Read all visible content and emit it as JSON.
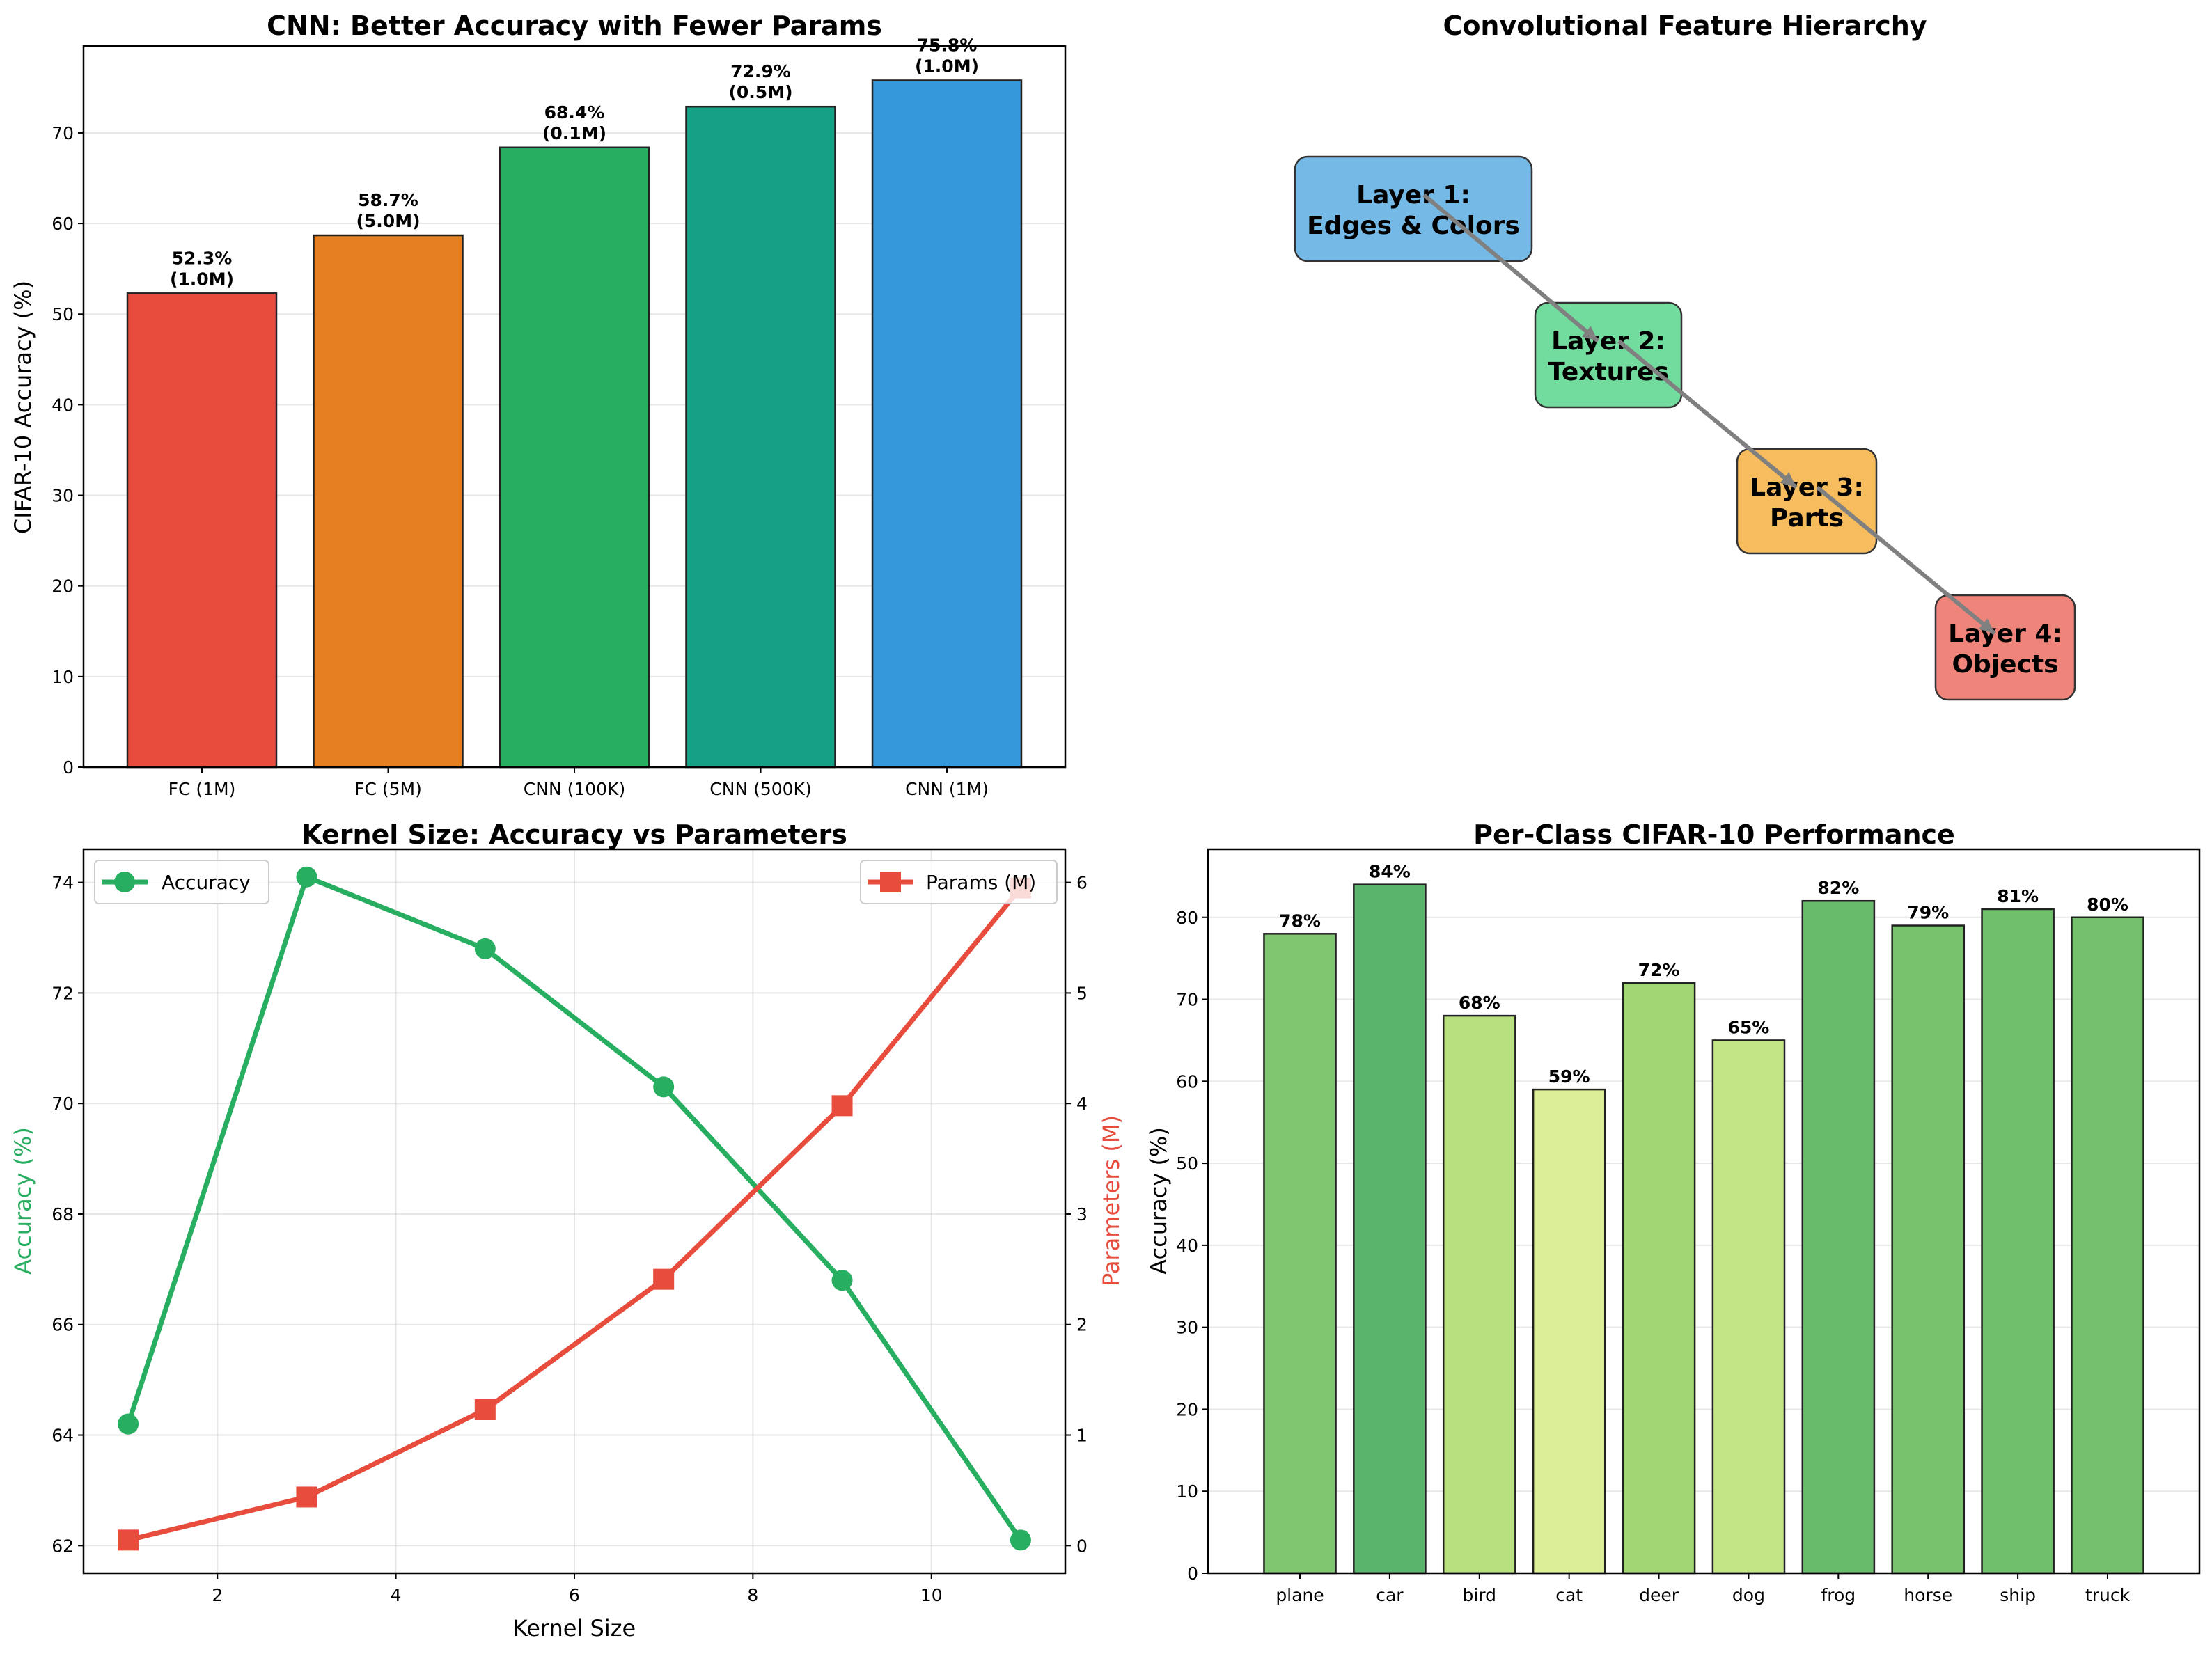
{
  "chart_data": [
    {
      "type": "bar",
      "title": "CNN: Better Accuracy with Fewer Params",
      "xlabel": "",
      "ylabel": "CIFAR-10 Accuracy (%)",
      "ylim": [
        0,
        79.6
      ],
      "yticks": [
        0,
        10,
        20,
        30,
        40,
        50,
        60,
        70
      ],
      "grid": "y",
      "categories": [
        "FC (1M)",
        "FC (5M)",
        "CNN (100K)",
        "CNN (500K)",
        "CNN (1M)"
      ],
      "values": [
        52.3,
        58.7,
        68.4,
        72.9,
        75.8
      ],
      "params_millions": [
        1.0,
        5.0,
        0.1,
        0.5,
        1.0
      ],
      "data_labels": [
        "52.3%\n(1.0M)",
        "58.7%\n(5.0M)",
        "68.4%\n(0.1M)",
        "72.9%\n(0.5M)",
        "75.8%\n(1.0M)"
      ],
      "colors": [
        "#e74c3c",
        "#e67e22",
        "#27ae60",
        "#16a085",
        "#3498db"
      ]
    },
    {
      "type": "diagram",
      "title": "Convolutional Feature Hierarchy",
      "nodes": [
        {
          "label": "Layer 1:\nEdges & Colors",
          "color": "#5dade2"
        },
        {
          "label": "Layer 2:\nTextures",
          "color": "#58d68d"
        },
        {
          "label": "Layer 3:\nParts",
          "color": "#f5b041"
        },
        {
          "label": "Layer 4:\nObjects",
          "color": "#ec7063"
        }
      ],
      "edges": [
        [
          0,
          1
        ],
        [
          1,
          2
        ],
        [
          2,
          3
        ]
      ],
      "edge_color": "#808080"
    },
    {
      "type": "line",
      "title": "Kernel Size: Accuracy vs Parameters",
      "xlabel": "Kernel Size",
      "ylabel": "Accuracy (%)",
      "ylabel_right": "Parameters (M)",
      "x": [
        1,
        3,
        5,
        7,
        9,
        11
      ],
      "xlim": [
        0.5,
        11.5
      ],
      "xticks": [
        2,
        4,
        6,
        8,
        10
      ],
      "ylim": [
        61.5,
        74.6
      ],
      "yticks": [
        62,
        64,
        66,
        68,
        70,
        72,
        74
      ],
      "ylim_right": [
        -0.25,
        6.3
      ],
      "yticks_right": [
        0,
        1,
        2,
        3,
        4,
        5,
        6
      ],
      "grid": "both",
      "series": [
        {
          "name": "Accuracy",
          "axis": "left",
          "marker": "circle",
          "color": "#27ae60",
          "values": [
            64.2,
            74.1,
            72.8,
            70.3,
            66.8,
            62.1
          ]
        },
        {
          "name": "Params (M)",
          "axis": "right",
          "marker": "square",
          "color": "#e74c3c",
          "values": [
            0.05,
            0.44,
            1.23,
            2.41,
            3.98,
            5.95
          ]
        }
      ],
      "legend": [
        {
          "label": "Accuracy",
          "placement": "top-left"
        },
        {
          "label": "Params (M)",
          "placement": "top-right"
        }
      ]
    },
    {
      "type": "bar",
      "title": "Per-Class CIFAR-10 Performance",
      "xlabel": "",
      "ylabel": "Accuracy (%)",
      "ylim": [
        0,
        88.3
      ],
      "yticks": [
        0,
        10,
        20,
        30,
        40,
        50,
        60,
        70,
        80
      ],
      "grid": "y",
      "categories": [
        "plane",
        "car",
        "bird",
        "cat",
        "deer",
        "dog",
        "frog",
        "horse",
        "ship",
        "truck"
      ],
      "values": [
        78,
        84,
        68,
        59,
        72,
        65,
        82,
        79,
        81,
        80
      ],
      "data_labels": [
        "78%",
        "84%",
        "68%",
        "59%",
        "72%",
        "65%",
        "82%",
        "79%",
        "81%",
        "80%"
      ],
      "colors": [
        "#80c671",
        "#5bb46b",
        "#b8e07f",
        "#dcef97",
        "#a1d574",
        "#c3e585",
        "#68bb6b",
        "#78c16d",
        "#6fbf6c",
        "#75c06e"
      ]
    }
  ]
}
